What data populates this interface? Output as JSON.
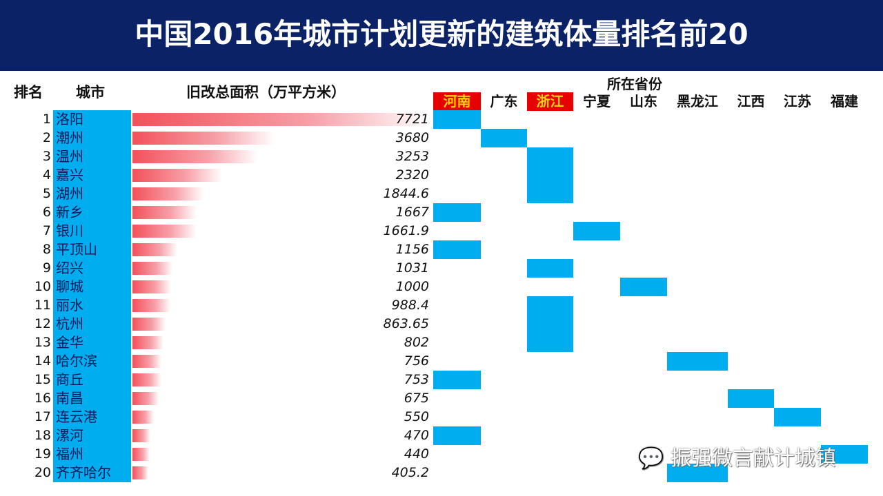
{
  "title": "中国2016年城市计划更新的建筑体量排名前20",
  "headers": {
    "rank": "排名",
    "city": "城市",
    "area": "旧改总面积（万平方米）",
    "province": "所在省份"
  },
  "colors": {
    "title_bg": "#0b2266",
    "city_bg": "#00adef",
    "bar": "#f3505a",
    "highlight_bg": "#e60000",
    "highlight_text": "#ffd400"
  },
  "watermark": "振强微言献计城镇",
  "chart_data": {
    "type": "bar",
    "provinces": [
      {
        "name": "河南",
        "highlight": true
      },
      {
        "name": "广东",
        "highlight": false
      },
      {
        "name": "浙江",
        "highlight": true
      },
      {
        "name": "宁夏",
        "highlight": false
      },
      {
        "name": "山东",
        "highlight": false
      },
      {
        "name": "黑龙江",
        "highlight": false
      },
      {
        "name": "江西",
        "highlight": false
      },
      {
        "name": "江苏",
        "highlight": false
      },
      {
        "name": "福建",
        "highlight": false
      }
    ],
    "rows": [
      {
        "rank": "1",
        "city": "洛阳",
        "value": "7721",
        "province": "河南"
      },
      {
        "rank": "2",
        "city": "潮州",
        "value": "3680",
        "province": "广东"
      },
      {
        "rank": "3",
        "city": "温州",
        "value": "3253",
        "province": "浙江"
      },
      {
        "rank": "4",
        "city": "嘉兴",
        "value": "2320",
        "province": "浙江"
      },
      {
        "rank": "5",
        "city": "湖州",
        "value": "1844.6",
        "province": "浙江"
      },
      {
        "rank": "6",
        "city": "新乡",
        "value": "1667",
        "province": "河南"
      },
      {
        "rank": "7",
        "city": "银川",
        "value": "1661.9",
        "province": "宁夏"
      },
      {
        "rank": "8",
        "city": "平顶山",
        "value": "1156",
        "province": "河南"
      },
      {
        "rank": "9",
        "city": "绍兴",
        "value": "1031",
        "province": "浙江"
      },
      {
        "rank": "10",
        "city": "聊城",
        "value": "1000",
        "province": "山东"
      },
      {
        "rank": "11",
        "city": "丽水",
        "value": "988.4",
        "province": "浙江"
      },
      {
        "rank": "12",
        "city": "杭州",
        "value": "863.65",
        "province": "浙江"
      },
      {
        "rank": "13",
        "city": "金华",
        "value": "802",
        "province": "浙江"
      },
      {
        "rank": "14",
        "city": "哈尔滨",
        "value": "756",
        "province": "黑龙江"
      },
      {
        "rank": "15",
        "city": "商丘",
        "value": "753",
        "province": "河南"
      },
      {
        "rank": "16",
        "city": "南昌",
        "value": "675",
        "province": "江西"
      },
      {
        "rank": "17",
        "city": "连云港",
        "value": "550",
        "province": "江苏"
      },
      {
        "rank": "18",
        "city": "漯河",
        "value": "470",
        "province": "河南"
      },
      {
        "rank": "19",
        "city": "福州",
        "value": "440",
        "province": "福建"
      },
      {
        "rank": "20",
        "city": "齐齐哈尔",
        "value": "405.2",
        "province": "黑龙江"
      }
    ]
  }
}
